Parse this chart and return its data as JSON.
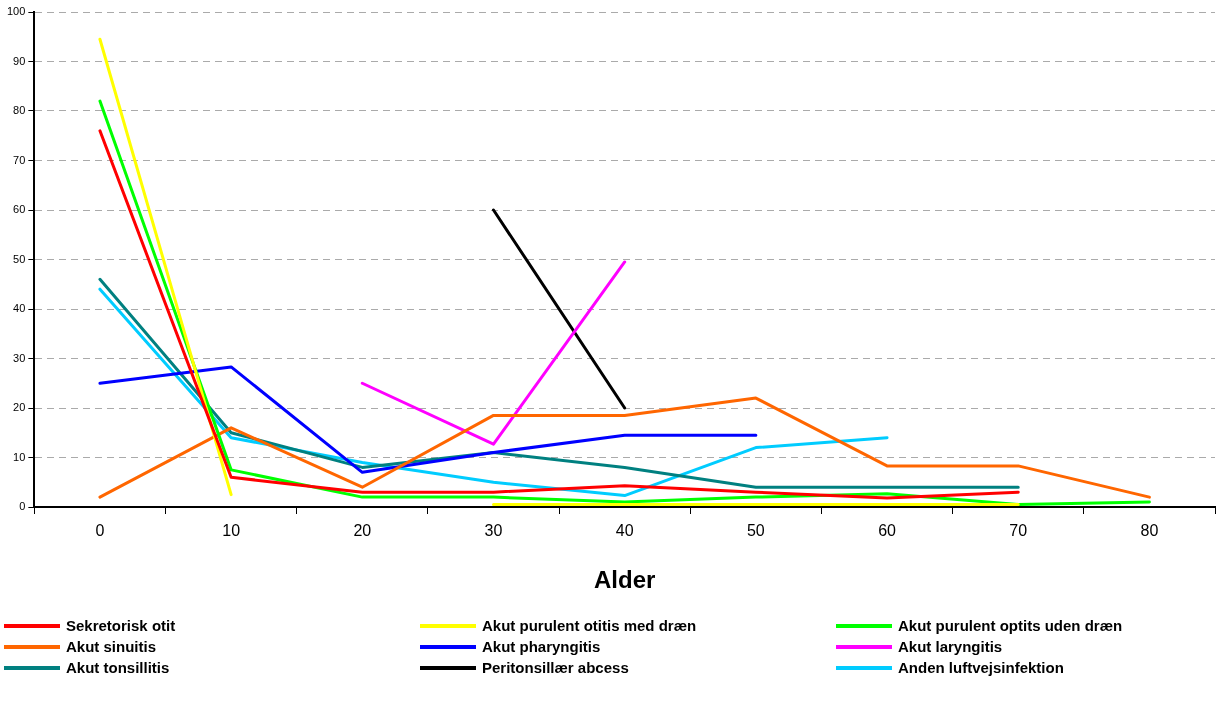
{
  "chart_data": {
    "type": "line",
    "xlabel": "Alder",
    "categories": [
      "0",
      "10",
      "20",
      "30",
      "40",
      "50",
      "60",
      "70",
      "80"
    ],
    "ylim": [
      0,
      100
    ],
    "yticks": [
      0,
      10,
      20,
      30,
      40,
      50,
      60,
      70,
      80,
      90,
      100
    ],
    "grid": "y",
    "legend": "bottom",
    "line_style": "solid",
    "marker": "none",
    "series": [
      {
        "name": "Sekretorisk otit",
        "color": "#ff0000",
        "values": [
          76,
          6,
          3,
          3,
          4.3,
          3,
          1.8,
          3,
          null
        ]
      },
      {
        "name": "Akut purulent otitis med dræn",
        "color": "#ffff00",
        "values": [
          94.5,
          2.5,
          null,
          0.5,
          0.5,
          0.5,
          0.5,
          0.5,
          null
        ]
      },
      {
        "name": "Akut purulent optits uden dræn",
        "color": "#00ff00",
        "values": [
          82,
          7.5,
          2,
          2,
          1,
          2,
          2.7,
          0.5,
          1
        ]
      },
      {
        "name": "Akut sinuitis",
        "color": "#ff6600",
        "values": [
          2,
          16,
          4,
          18.5,
          18.5,
          22,
          8.3,
          8.3,
          2
        ]
      },
      {
        "name": "Akut pharyngitis",
        "color": "#0000ff",
        "values": [
          25,
          28.3,
          7,
          11,
          14.5,
          14.5,
          null,
          null,
          null
        ]
      },
      {
        "name": "Akut laryngitis",
        "color": "#ff00ff",
        "values": [
          null,
          null,
          25,
          12.7,
          49.5,
          null,
          null,
          null,
          null
        ]
      },
      {
        "name": "Akut tonsillitis",
        "color": "#008080",
        "values": [
          46,
          15,
          8,
          11,
          8,
          4,
          4,
          4,
          null
        ]
      },
      {
        "name": "Peritonsillær abcess",
        "color": "#000000",
        "values": [
          null,
          null,
          null,
          60,
          20,
          null,
          null,
          null,
          null
        ]
      },
      {
        "name": "Anden luftvejsinfektion",
        "color": "#00ccff",
        "values": [
          44,
          14,
          9,
          5,
          2.3,
          12,
          14,
          null,
          null
        ]
      }
    ]
  }
}
